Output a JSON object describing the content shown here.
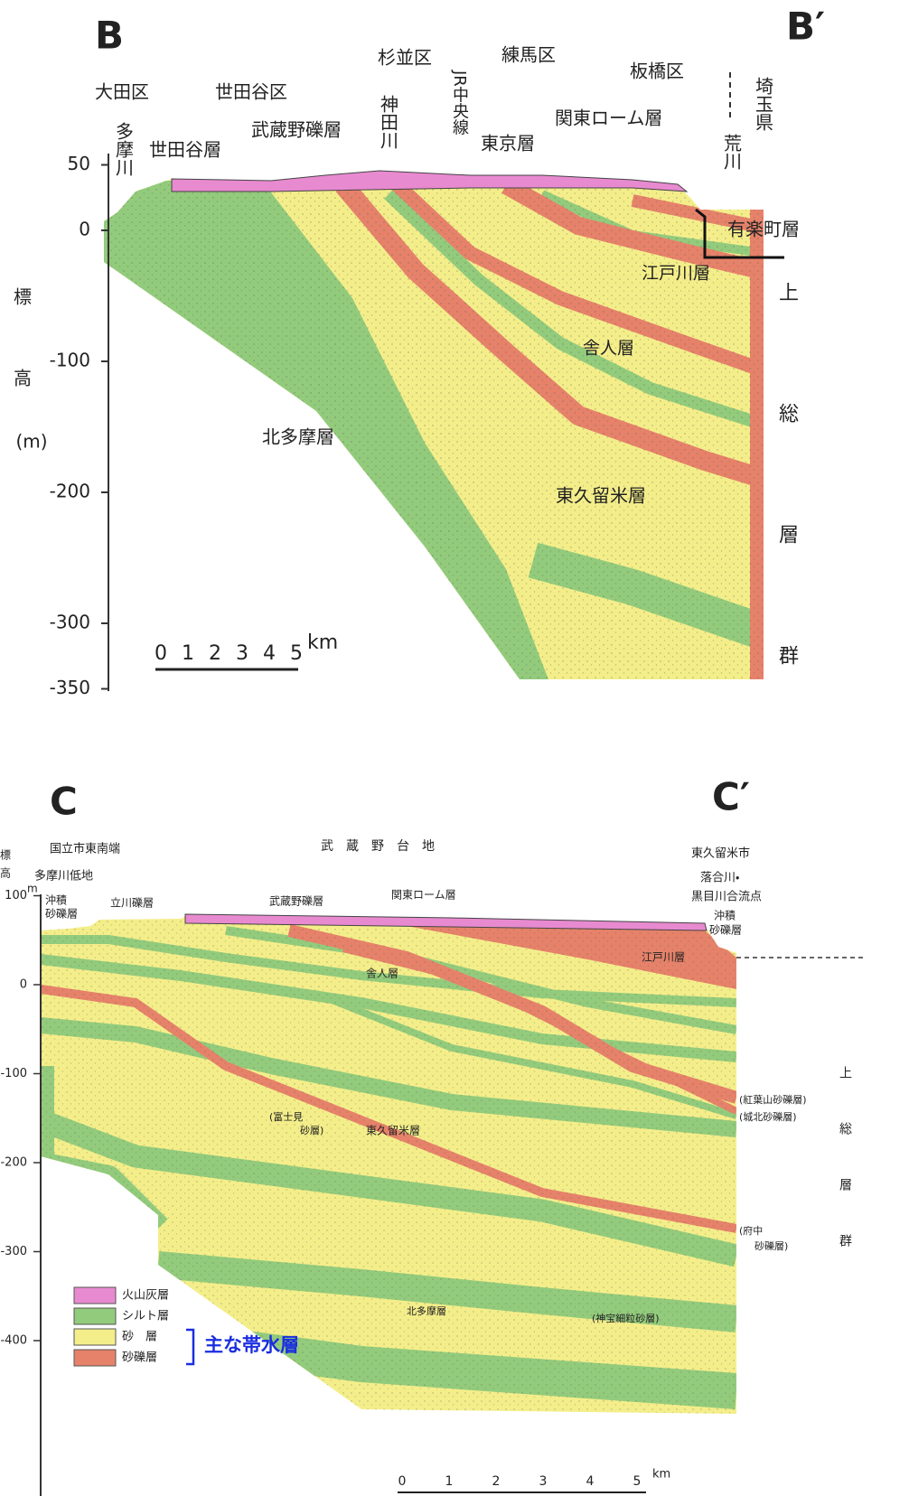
{
  "section_b": {
    "title_left": "B",
    "title_right": "B′",
    "y_axis_label_lines": [
      "標",
      "高",
      "(m)"
    ],
    "y_ticks": [
      50,
      0,
      -100,
      -200,
      -300,
      -350
    ],
    "scale_ticks": [
      0,
      1,
      2,
      3,
      4,
      5
    ],
    "scale_unit": "km",
    "labels": [
      "大田区",
      "世田谷区",
      "杉並区",
      "練馬区",
      "板橋区",
      "多摩川",
      "世田谷層",
      "武蔵野礫層",
      "神田川",
      "JR中央線",
      "東京層",
      "関東ローム層",
      "埼玉県",
      "荒川",
      "有楽町層",
      "江戸川層",
      "舎人層",
      "北多摩層",
      "東久留米層",
      "上総層群"
    ]
  },
  "section_c": {
    "title_left": "C",
    "title_right": "C′",
    "y_axis_label": "標高",
    "y_axis_unit": "m",
    "y_ticks": [
      100,
      0,
      -100,
      -200,
      -300,
      -400
    ],
    "scale_ticks": [
      0,
      1,
      2,
      3,
      4,
      5
    ],
    "scale_unit": "km",
    "labels": [
      "国立市東南端",
      "多摩川低地",
      "武蔵野台地",
      "東久留米市",
      "落合川・",
      "黒目川合流点",
      "沖積",
      "砂礫層",
      "立川礫層",
      "武蔵野礫層",
      "関東ローム層",
      "沖積",
      "砂礫層",
      "江戸川層",
      "舎人層",
      "(富士見",
      "砂層)",
      "東久留米層",
      "(紅葉山砂礫層)",
      "(城北砂礫層)",
      "(府中",
      "砂礫層)",
      "(神宝細粒砂層)",
      "北多摩層",
      "上総層群"
    ],
    "legend": {
      "items": [
        "火山灰層",
        "シルト層",
        "砂　層",
        "砂礫層"
      ],
      "aquifer_note": "主な帯水層"
    }
  }
}
